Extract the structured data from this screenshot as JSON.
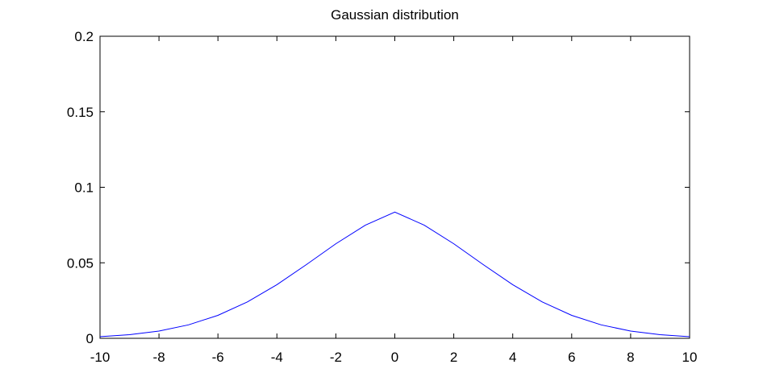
{
  "chart_data": {
    "type": "line",
    "title": "Gaussian distribution",
    "xlabel": "",
    "ylabel": "",
    "xlim": [
      -10,
      10
    ],
    "ylim": [
      0,
      0.2
    ],
    "xticks": [
      -10,
      -8,
      -6,
      -4,
      -2,
      0,
      2,
      4,
      6,
      8,
      10
    ],
    "xtick_labels": [
      "-10",
      "-8",
      "-6",
      "-4",
      "-2",
      "0",
      "2",
      "4",
      "6",
      "8",
      "10"
    ],
    "yticks": [
      0,
      0.05,
      0.1,
      0.15,
      0.2
    ],
    "ytick_labels": [
      "0",
      "0.05",
      "0.1",
      "0.15",
      "0.2"
    ],
    "grid": false,
    "series": [
      {
        "color": "#0000ff",
        "x": [
          -10,
          -9,
          -8,
          -7,
          -6,
          -5,
          -4,
          -3,
          -2,
          -1,
          0,
          1,
          2,
          3,
          4,
          5,
          6,
          7,
          8,
          9,
          10
        ],
        "y": [
          0.0011,
          0.0024,
          0.0048,
          0.0089,
          0.0152,
          0.0241,
          0.0355,
          0.0488,
          0.0626,
          0.0749,
          0.0836,
          0.0749,
          0.0626,
          0.0488,
          0.0355,
          0.0241,
          0.0152,
          0.0089,
          0.0048,
          0.0024,
          0.0011
        ]
      }
    ]
  },
  "colors": {
    "axis": "#000000",
    "line": "#0000ff",
    "background": "#ffffff"
  }
}
